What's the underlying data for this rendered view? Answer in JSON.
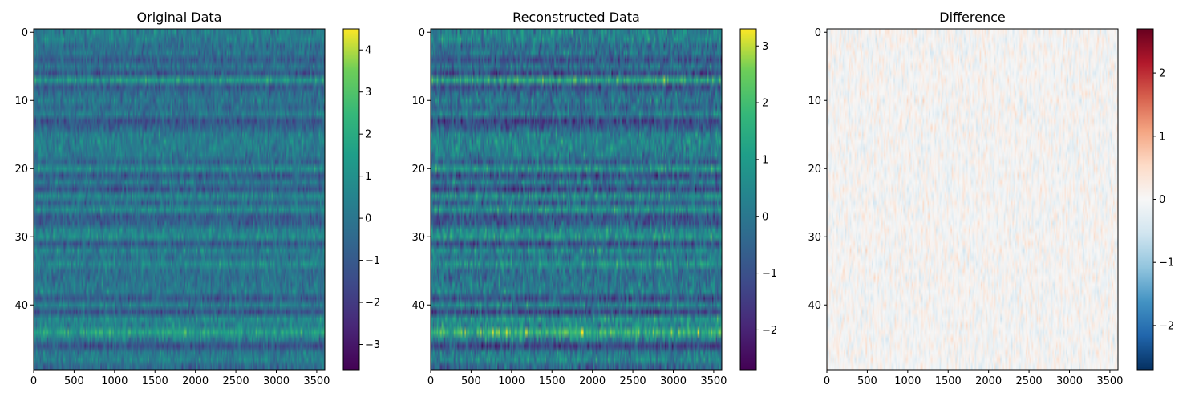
{
  "chart_data": [
    {
      "type": "heatmap",
      "title": "Original Data",
      "colormap": "viridis",
      "rows": 50,
      "cols": 3600,
      "xlim": [
        0,
        3600
      ],
      "ylim": [
        0,
        50
      ],
      "xticks": [
        0,
        500,
        1000,
        1500,
        2000,
        2500,
        3000,
        3500
      ],
      "xtick_labels": [
        "0",
        "500",
        "1000",
        "1500",
        "2000",
        "2500",
        "3000",
        "3500"
      ],
      "yticks": [
        0,
        10,
        20,
        30,
        40
      ],
      "ytick_labels": [
        "0",
        "10",
        "20",
        "30",
        "40"
      ],
      "colorbar": {
        "vmin": -3.6,
        "vmax": 4.5,
        "ticks": [
          -3,
          -2,
          -1,
          0,
          1,
          2,
          3,
          4
        ],
        "tick_labels": [
          "−3",
          "−2",
          "−1",
          "0",
          "1",
          "2",
          "3",
          "4"
        ]
      }
    },
    {
      "type": "heatmap",
      "title": "Reconstructed Data",
      "colormap": "viridis",
      "rows": 50,
      "cols": 3600,
      "xlim": [
        0,
        3600
      ],
      "ylim": [
        0,
        50
      ],
      "xticks": [
        0,
        500,
        1000,
        1500,
        2000,
        2500,
        3000,
        3500
      ],
      "xtick_labels": [
        "0",
        "500",
        "1000",
        "1500",
        "2000",
        "2500",
        "3000",
        "3500"
      ],
      "yticks": [
        0,
        10,
        20,
        30,
        40
      ],
      "ytick_labels": [
        "0",
        "10",
        "20",
        "30",
        "40"
      ],
      "colorbar": {
        "vmin": -2.7,
        "vmax": 3.3,
        "ticks": [
          -2,
          -1,
          0,
          1,
          2,
          3
        ],
        "tick_labels": [
          "−2",
          "−1",
          "0",
          "1",
          "2",
          "3"
        ]
      }
    },
    {
      "type": "heatmap",
      "title": "Difference",
      "colormap": "RdBu_r",
      "rows": 50,
      "cols": 3600,
      "xlim": [
        0,
        3600
      ],
      "ylim": [
        0,
        50
      ],
      "xticks": [
        0,
        500,
        1000,
        1500,
        2000,
        2500,
        3000,
        3500
      ],
      "xtick_labels": [
        "0",
        "500",
        "1000",
        "1500",
        "2000",
        "2500",
        "3000",
        "3500"
      ],
      "yticks": [
        0,
        10,
        20,
        30,
        40
      ],
      "ytick_labels": [
        "0",
        "10",
        "20",
        "30",
        "40"
      ],
      "colorbar": {
        "vmin": -2.7,
        "vmax": 2.7,
        "ticks": [
          -2,
          -1,
          0,
          1,
          2
        ],
        "tick_labels": [
          "−2",
          "−1",
          "0",
          "1",
          "2"
        ]
      }
    }
  ]
}
